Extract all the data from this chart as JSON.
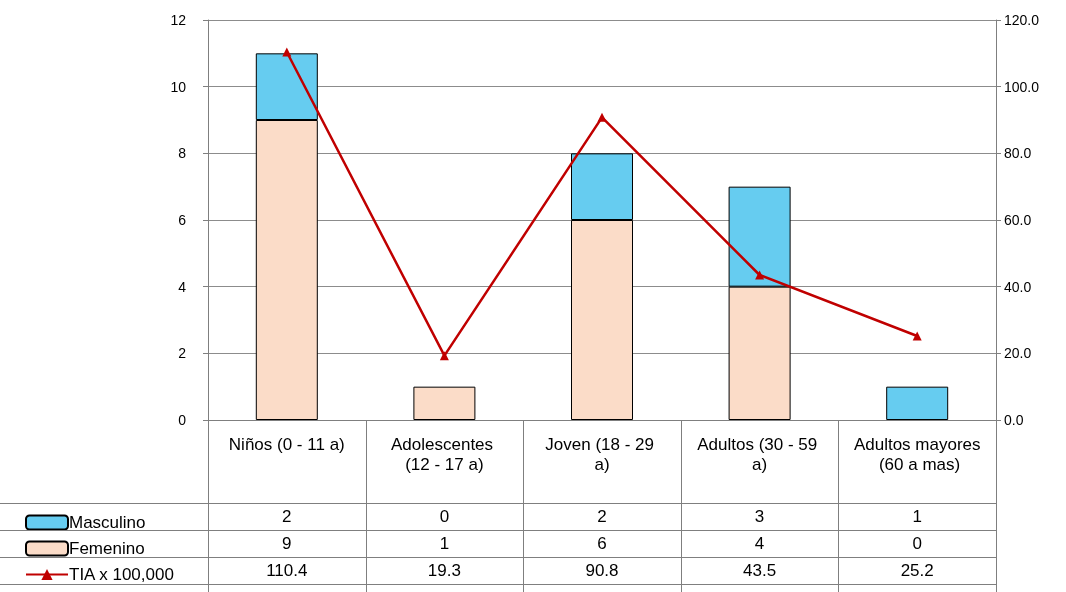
{
  "chart_data": {
    "type": "bar",
    "categories": [
      "Niños (0 - 11 a)",
      "Adolescentes (12 - 17 a)",
      "Joven (18 - 29 a)",
      "Adultos (30 - 59 a)",
      "Adultos mayores (60 a mas)"
    ],
    "series": [
      {
        "name": "Femenino",
        "color": "#fbdcc8",
        "values": [
          9,
          1,
          6,
          4,
          0
        ]
      },
      {
        "name": "Masculino",
        "color": "#66ccf0",
        "values": [
          2,
          0,
          2,
          3,
          1
        ]
      },
      {
        "name": "TIA x 100,000",
        "type": "line",
        "axis": "y2",
        "color": "#c00000",
        "marker": "triangle",
        "values": [
          110.4,
          19.3,
          90.8,
          43.5,
          25.2
        ]
      }
    ],
    "stacked": true,
    "ylim": [
      0,
      12
    ],
    "yticks": [
      0,
      2,
      4,
      6,
      8,
      10,
      12
    ],
    "y2lim": [
      0,
      120
    ],
    "y2ticks": [
      {
        "value": 0,
        "label": "0.0"
      },
      {
        "value": 20,
        "label": "20.0"
      },
      {
        "value": 40,
        "label": "40.0"
      },
      {
        "value": 60,
        "label": "60.0"
      },
      {
        "value": 80,
        "label": "80.0"
      },
      {
        "value": 100,
        "label": "100.0"
      },
      {
        "value": 120,
        "label": "120.0"
      }
    ],
    "grid": "y",
    "legend": "bottom left",
    "data_labels": true
  }
}
